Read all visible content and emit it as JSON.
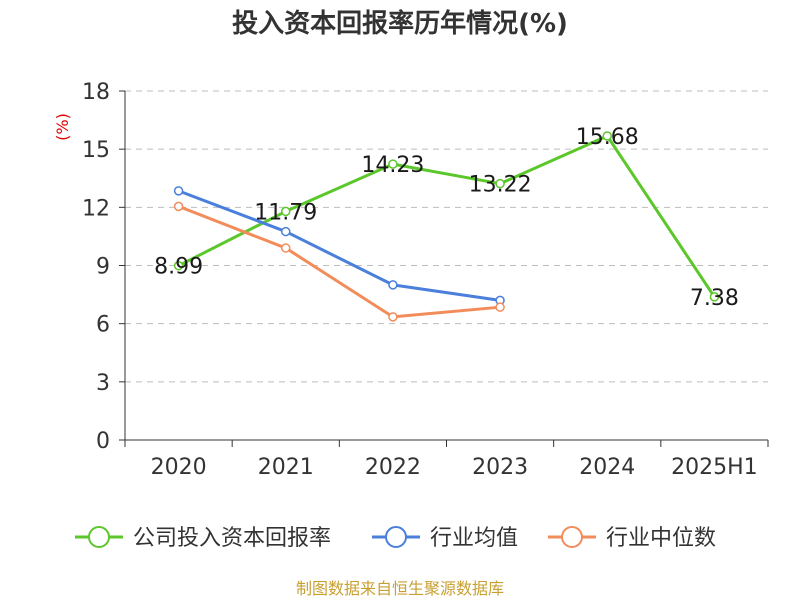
{
  "chart_data": {
    "type": "line",
    "title": "投入资本回报率历年情况(%)",
    "ylabel": "(%)",
    "xlabel": "",
    "ylim": [
      0,
      18
    ],
    "yticks": [
      0,
      3,
      6,
      9,
      12,
      15,
      18
    ],
    "categories": [
      "2020",
      "2021",
      "2022",
      "2023",
      "2024",
      "2025H1"
    ],
    "grid": true,
    "legend_position": "bottom",
    "series": [
      {
        "name": "公司投入资本回报率",
        "color": "#5cc72a",
        "values": [
          8.99,
          11.79,
          14.23,
          13.22,
          15.68,
          7.38
        ],
        "labels": [
          "8.99",
          "11.79",
          "14.23",
          "13.22",
          "15.68",
          "7.38"
        ]
      },
      {
        "name": "行业均值",
        "color": "#4a7fdc",
        "values": [
          12.85,
          10.75,
          8.0,
          7.2,
          null,
          null
        ]
      },
      {
        "name": "行业中位数",
        "color": "#f28c5a",
        "values": [
          12.05,
          9.9,
          6.35,
          6.85,
          null,
          null
        ]
      }
    ]
  },
  "source": "制图数据来自恒生聚源数据库"
}
